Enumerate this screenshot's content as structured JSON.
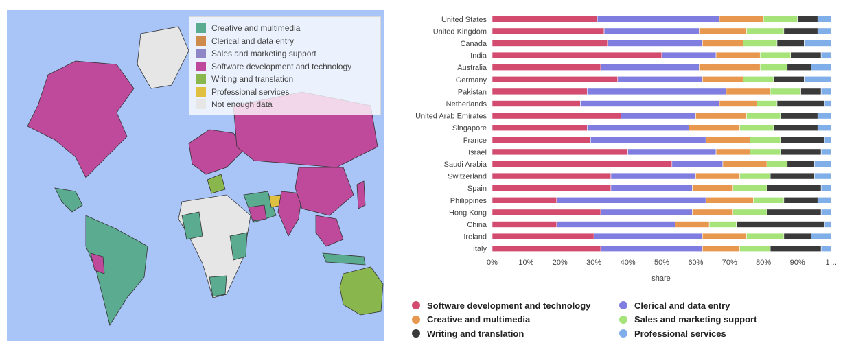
{
  "map": {
    "background_color": "#a9c4f7",
    "legend": [
      {
        "label": "Creative and multimedia",
        "color": "#5aab8f"
      },
      {
        "label": "Clerical and data entry",
        "color": "#cf8b4c"
      },
      {
        "label": "Sales and marketing support",
        "color": "#8f86c7"
      },
      {
        "label": "Software development and technology",
        "color": "#bf4a9c"
      },
      {
        "label": "Writing and translation",
        "color": "#89b74d"
      },
      {
        "label": "Professional services",
        "color": "#e0c040"
      },
      {
        "label": "Not enough data",
        "color": "#e6e6e6"
      }
    ]
  },
  "chart_data": {
    "type": "bar",
    "orientation": "horizontal",
    "stacked": true,
    "categories": [
      "United States",
      "United Kingdom",
      "Canada",
      "India",
      "Australia",
      "Germany",
      "Pakistan",
      "Netherlands",
      "United Arab Emirates",
      "Singapore",
      "France",
      "Israel",
      "Saudi Arabia",
      "Switzerland",
      "Spain",
      "Philippines",
      "Hong Kong",
      "China",
      "Ireland",
      "Italy"
    ],
    "series": [
      {
        "name": "Software development and technology",
        "color": "#d34b6e",
        "values": [
          31,
          33,
          34,
          50,
          32,
          37,
          28,
          26,
          38,
          28,
          29,
          40,
          53,
          35,
          35,
          19,
          32,
          19,
          30,
          32
        ]
      },
      {
        "name": "Clerical and data entry",
        "color": "#7f7ee0",
        "values": [
          36,
          28,
          28,
          16,
          29,
          25,
          41,
          41,
          22,
          30,
          34,
          26,
          15,
          25,
          24,
          44,
          27,
          35,
          32,
          30
        ]
      },
      {
        "name": "Creative and multimedia",
        "color": "#e8974f",
        "values": [
          13,
          14,
          12,
          13,
          18,
          12,
          13,
          11,
          15,
          15,
          13,
          10,
          13,
          13,
          12,
          14,
          12,
          10,
          13,
          11
        ]
      },
      {
        "name": "Sales and marketing support",
        "color": "#a6e378",
        "values": [
          10,
          11,
          10,
          9,
          8,
          9,
          9,
          6,
          10,
          10,
          9,
          9,
          6,
          9,
          10,
          9,
          10,
          8,
          11,
          9
        ]
      },
      {
        "name": "Writing and translation",
        "color": "#3a3a3a",
        "values": [
          6,
          10,
          8,
          9,
          7,
          9,
          6,
          14,
          11,
          13,
          13,
          12,
          8,
          13,
          16,
          10,
          16,
          26,
          8,
          15
        ]
      },
      {
        "name": "Professional services",
        "color": "#80aee8",
        "values": [
          4,
          4,
          8,
          3,
          6,
          8,
          3,
          2,
          4,
          4,
          2,
          3,
          5,
          5,
          3,
          4,
          3,
          2,
          6,
          3
        ]
      }
    ],
    "xlabel": "share",
    "x_ticks": [
      "0%",
      "10%",
      "20%",
      "30%",
      "40%",
      "50%",
      "60%",
      "70%",
      "80%",
      "90%",
      "1…"
    ],
    "xlim": [
      0,
      100
    ],
    "grid": false,
    "legend_position": "bottom"
  }
}
